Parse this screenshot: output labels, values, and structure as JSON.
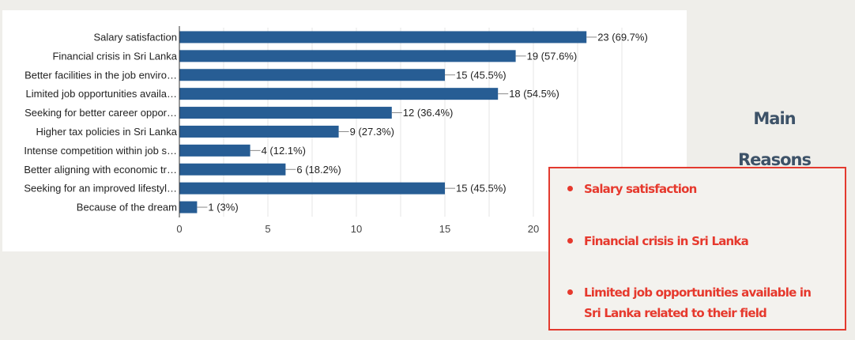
{
  "chart_data": {
    "type": "bar",
    "orientation": "horizontal",
    "categories": [
      "Salary satisfaction",
      "Financial crisis in Sri Lanka",
      "Better facilities in the job enviro…",
      "Limited job opportunities availa…",
      "Seeking for better career oppor…",
      "Higher tax policies in Sri Lanka",
      "Intense competition within job s…",
      "Better aligning with economic tr…",
      "Seeking for an improved lifestyl…",
      "Because of the dream"
    ],
    "values": [
      23,
      19,
      15,
      18,
      12,
      9,
      4,
      6,
      15,
      1
    ],
    "value_labels": [
      "23 (69.7%)",
      "19 (57.6%)",
      "15 (45.5%)",
      "18 (54.5%)",
      "12 (36.4%)",
      "9 (27.3%)",
      "4 (12.1%)",
      "6 (18.2%)",
      "15 (45.5%)",
      "1 (3%)"
    ],
    "x_ticks": [
      "0",
      "5",
      "10",
      "15",
      "20"
    ],
    "xlim": [
      0,
      25
    ],
    "grid": true,
    "bar_color": "#275d94"
  },
  "side_panel": {
    "title_line1": "Main",
    "title_line2": "Reasons",
    "items": [
      "Salary satisfaction",
      "Financial crisis in Sri Lanka",
      "Limited job opportunities  available in Sri Lanka related to their field"
    ],
    "accent_color": "#e6392d",
    "title_color": "#3d5268"
  }
}
